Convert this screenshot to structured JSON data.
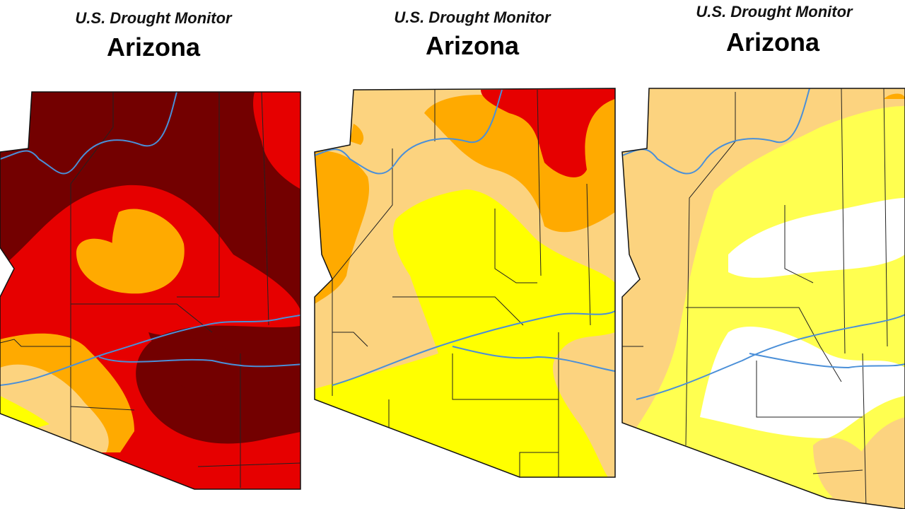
{
  "panels": [
    {
      "subtitle": "U.S. Drought Monitor",
      "title": "Arizona"
    },
    {
      "subtitle": "U.S. Drought Monitor",
      "title": "Arizona"
    },
    {
      "subtitle": "U.S. Drought Monitor",
      "title": "Arizona"
    }
  ]
}
